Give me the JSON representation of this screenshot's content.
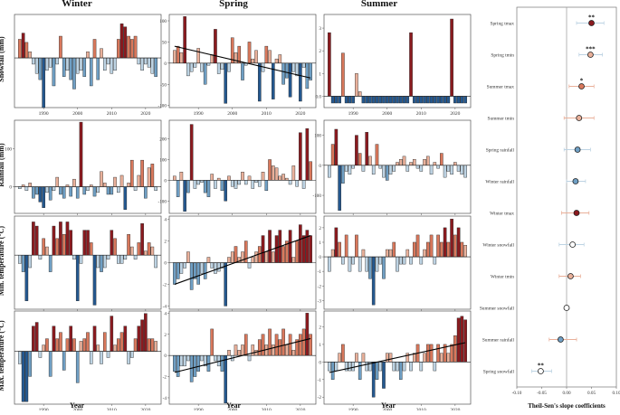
{
  "columns": [
    "Winter",
    "Spring",
    "Summer"
  ],
  "row_labels": [
    "Snowfall (mm)",
    "Rainfall (mm)",
    "Min. temperature (°C)",
    "Max. temperature (°C)"
  ],
  "x_axis_label": "Year",
  "x_ticks": [
    "1990",
    "2000",
    "2010",
    "2020"
  ],
  "colors": {
    "dark_red": "#8b1a1f",
    "light_red": "#e9b09a",
    "mid_red": "#d9785c",
    "light_blue": "#bdd3e3",
    "mid_blue": "#6f9fc4",
    "dark_blue": "#24588f"
  },
  "chart_data": [
    {
      "type": "bar",
      "id": "winter-snowfall",
      "season": "Winter",
      "variable": "Snowfall (mm)",
      "start_year": 1983,
      "ylim": [
        -80,
        70
      ],
      "yticks": [],
      "trend": "none",
      "values": [
        30,
        40,
        25,
        10,
        -10,
        -25,
        -35,
        -80,
        -20,
        -15,
        -45,
        -10,
        35,
        -30,
        -20,
        -35,
        -50,
        -25,
        -20,
        -30,
        10,
        -45,
        30,
        -35,
        15,
        -20,
        -10,
        -25,
        -20,
        30,
        55,
        50,
        35,
        30,
        35,
        -10,
        -20,
        -10,
        -15,
        -25,
        -30
      ]
    },
    {
      "type": "bar",
      "id": "spring-snowfall",
      "season": "Spring",
      "variable": "Snowfall (mm)",
      "start_year": 1983,
      "ylim": [
        -105,
        115
      ],
      "yticks": [
        "100",
        "50",
        "0",
        "-50",
        "-100"
      ],
      "trend": {
        "from": [
          1983,
          40
        ],
        "to": [
          2023,
          -35
        ]
      },
      "values": [
        30,
        40,
        25,
        110,
        -30,
        -20,
        -10,
        35,
        -20,
        -50,
        -5,
        20,
        80,
        -25,
        -15,
        -95,
        -20,
        60,
        25,
        40,
        -40,
        -5,
        50,
        10,
        30,
        -90,
        -20,
        40,
        30,
        -85,
        10,
        20,
        -50,
        -35,
        -80,
        -20,
        -30,
        -90,
        -10,
        -60,
        -40
      ]
    },
    {
      "type": "bar",
      "id": "summer-snowfall",
      "season": "Summer",
      "variable": "Snowfall (mm)",
      "start_year": 1983,
      "ylim": [
        -0.5,
        3.6
      ],
      "yticks": [
        "3",
        "2",
        "1",
        "0.0"
      ],
      "trend": "none",
      "values": [
        2.8,
        -0.3,
        -0.3,
        -0.3,
        1.9,
        -0.3,
        -0.3,
        -0.3,
        1.0,
        0.2,
        -0.3,
        -0.3,
        -0.3,
        -0.3,
        -0.3,
        -0.3,
        -0.3,
        -0.3,
        -0.3,
        -0.3,
        -0.3,
        -0.3,
        -0.3,
        -0.3,
        2.8,
        -0.3,
        -0.3,
        -0.3,
        -0.3,
        -0.3,
        -0.3,
        -0.3,
        -0.3,
        -0.3,
        -0.3,
        -0.3,
        3.4,
        -0.3,
        -0.3,
        -0.3,
        -0.3
      ]
    },
    {
      "type": "bar",
      "id": "winter-rainfall",
      "season": "Winter",
      "variable": "Rainfall (mm)",
      "start_year": 1983,
      "ylim": [
        -70,
        175
      ],
      "yticks": [
        "100",
        "0"
      ],
      "trend": "none",
      "values": [
        -5,
        5,
        -10,
        10,
        -30,
        -20,
        -40,
        -55,
        -15,
        -35,
        -10,
        25,
        -20,
        -30,
        5,
        -25,
        20,
        -30,
        170,
        -20,
        -10,
        5,
        -25,
        -15,
        40,
        10,
        -20,
        -20,
        25,
        -15,
        30,
        -60,
        10,
        70,
        -10,
        30,
        70,
        -30,
        50,
        60,
        -10
      ]
    },
    {
      "type": "bar",
      "id": "spring-rainfall",
      "season": "Spring",
      "variable": "Rainfall (mm)",
      "start_year": 1983,
      "ylim": [
        -160,
        290
      ],
      "yticks": [
        "200",
        "100",
        "0",
        "-100"
      ],
      "trend": "none",
      "values": [
        20,
        -80,
        40,
        -150,
        -60,
        270,
        -40,
        -20,
        -10,
        -60,
        -80,
        30,
        -40,
        10,
        -50,
        -100,
        20,
        -30,
        -40,
        -20,
        40,
        -20,
        20,
        -40,
        -10,
        -30,
        40,
        -50,
        100,
        70,
        60,
        20,
        30,
        10,
        -20,
        70,
        -30,
        230,
        -40,
        250,
        90
      ]
    },
    {
      "type": "bar",
      "id": "summer-rainfall",
      "season": "Summer",
      "variable": "Rainfall (mm)",
      "start_year": 1983,
      "ylim": [
        -160,
        150
      ],
      "yticks": [
        "100",
        "0",
        "-100"
      ],
      "trend": "none",
      "values": [
        -40,
        70,
        120,
        -150,
        -60,
        -20,
        -30,
        -10,
        100,
        40,
        -20,
        110,
        30,
        -30,
        70,
        -10,
        -40,
        -50,
        -30,
        -20,
        10,
        20,
        30,
        -20,
        10,
        20,
        -10,
        -20,
        20,
        30,
        -30,
        10,
        -10,
        40,
        -40,
        -20,
        -30,
        10,
        -20,
        -30,
        -40
      ]
    },
    {
      "type": "bar",
      "id": "winter-tmin",
      "season": "Winter",
      "variable": "Min. temperature (°C)",
      "start_year": 1983,
      "ylim": [
        -6.5,
        4.7
      ],
      "yticks": [],
      "trend": "none",
      "values": [
        -1,
        -2,
        -5.5,
        -1.5,
        4,
        3.5,
        -0.5,
        2,
        1,
        -2,
        3.5,
        2,
        4,
        2.5,
        4,
        3,
        -0.5,
        -5.5,
        -1,
        3,
        3,
        1.5,
        -6,
        -1.5,
        -2,
        -1.5,
        -0.5,
        3,
        2,
        -1,
        -1,
        -0.5,
        2.5,
        1,
        -0.5,
        1.5,
        3.8,
        0.5,
        1.5,
        1,
        -1.5
      ]
    },
    {
      "type": "bar",
      "id": "spring-tmin",
      "season": "Spring",
      "variable": "Min. temperature (°C)",
      "start_year": 1983,
      "ylim": [
        -4.3,
        4.3
      ],
      "yticks": [
        "4",
        "2",
        "0",
        "-2",
        "-4"
      ],
      "trend": {
        "from": [
          1983,
          -2
        ],
        "to": [
          2023,
          2.5
        ]
      },
      "values": [
        -2,
        -1.5,
        -1,
        -0.5,
        1,
        -2.5,
        -1.5,
        -2,
        -1,
        -1.5,
        0.5,
        -0.5,
        -1,
        -0.8,
        -0.5,
        -4,
        0.5,
        1,
        1.5,
        0.5,
        1,
        2,
        -0.5,
        0.5,
        1,
        1.5,
        2.5,
        1,
        3,
        1,
        2.5,
        3,
        1.5,
        2,
        3,
        0.5,
        2,
        3.5,
        2.5,
        3,
        2.5
      ]
    },
    {
      "type": "bar",
      "id": "summer-tmin",
      "season": "Summer",
      "variable": "Min. temperature (°C)",
      "start_year": 1983,
      "ylim": [
        -3.6,
        2.8
      ],
      "yticks": [
        "2",
        "1",
        "0",
        "-1",
        "-2",
        "-3"
      ],
      "trend": "none",
      "values": [
        -1,
        0.5,
        2,
        1,
        -0.5,
        1.5,
        -1,
        -0.5,
        1.5,
        -1,
        0.5,
        -1,
        -1.5,
        -3.3,
        -1,
        -0.5,
        -1.5,
        0.5,
        0.5,
        1,
        -1,
        -0.5,
        -0.5,
        0.5,
        -0.5,
        1,
        1.5,
        -0.5,
        0.5,
        1,
        1.5,
        -0.5,
        1.5,
        1,
        2,
        1,
        2.6,
        1.5,
        2,
        1,
        0.8
      ]
    },
    {
      "type": "bar",
      "id": "winter-tmax",
      "season": "Winter",
      "variable": "Max. temperature (°C)",
      "start_year": 1983,
      "ylim": [
        -4.2,
        3.2
      ],
      "yticks": [],
      "trend": "none",
      "values": [
        -1,
        -4,
        -4,
        -2,
        2,
        2.3,
        -0.5,
        0.5,
        1,
        -2,
        2,
        1,
        1.5,
        -1.5,
        1,
        2,
        1,
        -2.5,
        0.8,
        1,
        1.5,
        -1,
        2,
        0.5,
        -1,
        1.5,
        -0.5,
        2.8,
        0.5,
        1,
        1.5,
        2,
        -1,
        -0.5,
        1,
        2,
        2.5,
        3,
        1,
        1,
        0.8
      ]
    },
    {
      "type": "bar",
      "id": "spring-tmax",
      "season": "Spring",
      "variable": "Max. temperature (°C)",
      "start_year": 1983,
      "ylim": [
        -4.6,
        4.2
      ],
      "yticks": [
        "4",
        "2",
        "0",
        "-2",
        "-4"
      ],
      "trend": {
        "from": [
          1983,
          -1.6
        ],
        "to": [
          2023,
          1.6
        ]
      },
      "values": [
        -1.5,
        -2,
        -1,
        -1,
        -0.5,
        -2.5,
        -2,
        -1.5,
        -0.5,
        -1,
        -1.5,
        2.5,
        -0.5,
        -1,
        -1.5,
        -4.5,
        0.5,
        -0.5,
        1,
        0.5,
        1,
        2,
        -0.5,
        1,
        0.5,
        1.5,
        2,
        1,
        2.5,
        1,
        2,
        1.5,
        2.5,
        1,
        2,
        0.5,
        1.5,
        2,
        2.5,
        4,
        2
      ]
    },
    {
      "type": "bar",
      "id": "summer-tmax",
      "season": "Summer",
      "variable": "Max. temperature (°C)",
      "start_year": 1983,
      "ylim": [
        -2.4,
        2.9
      ],
      "yticks": [
        "2",
        "1",
        "0",
        "-1",
        "-2"
      ],
      "trend": {
        "from": [
          1983,
          -0.6
        ],
        "to": [
          2023,
          1.1
        ]
      },
      "values": [
        -0.5,
        -1,
        -0.5,
        0.5,
        1,
        -0.5,
        -0.5,
        -0.5,
        0.5,
        -1,
        0.5,
        -0.5,
        -0.5,
        -2,
        -1,
        -0.5,
        -1.5,
        0.5,
        0.5,
        -0.5,
        -0.5,
        -1,
        -0.5,
        0.5,
        -0.5,
        0.5,
        1,
        -0.5,
        0.5,
        1,
        1,
        -0.5,
        1,
        0.5,
        1,
        0.5,
        1,
        1.5,
        2.5,
        2.6,
        2.4
      ]
    },
    {
      "type": "dot",
      "id": "theil-sen",
      "xlabel": "Theil-Sen's slope coefficients",
      "xlim": [
        -0.1,
        0.1
      ],
      "xticks": [
        "-0.10",
        "-0.05",
        "0.00",
        "0.05",
        "0.10"
      ],
      "items": [
        {
          "label": "Spring tmax",
          "value": 0.05,
          "lo": 0.02,
          "hi": 0.075,
          "sig": "**",
          "fill": "dark_red",
          "err": "light_blue"
        },
        {
          "label": "Spring tmin",
          "value": 0.048,
          "lo": 0.025,
          "hi": 0.072,
          "sig": "***",
          "fill": "light_red",
          "err": "light_blue"
        },
        {
          "label": "Summer tmax",
          "value": 0.03,
          "lo": 0.005,
          "hi": 0.055,
          "sig": "*",
          "fill": "mid_red",
          "err": "light_red"
        },
        {
          "label": "Summer tmin",
          "value": 0.025,
          "lo": -0.005,
          "hi": 0.055,
          "sig": "",
          "fill": "light_red",
          "err": "light_red"
        },
        {
          "label": "Spring rainfall",
          "value": 0.022,
          "lo": -0.005,
          "hi": 0.048,
          "sig": "",
          "fill": "mid_blue",
          "err": "light_blue"
        },
        {
          "label": "Winter rainfall",
          "value": 0.018,
          "lo": 0.0,
          "hi": 0.038,
          "sig": "",
          "fill": "mid_blue",
          "err": "light_blue"
        },
        {
          "label": "Winter tmax",
          "value": 0.02,
          "lo": -0.01,
          "hi": 0.045,
          "sig": "",
          "fill": "dark_red",
          "err": "light_red"
        },
        {
          "label": "Winter snowfall",
          "value": 0.012,
          "lo": -0.015,
          "hi": 0.035,
          "sig": "",
          "fill": "white",
          "err": "light_blue"
        },
        {
          "label": "Winter tmin",
          "value": 0.008,
          "lo": -0.015,
          "hi": 0.028,
          "sig": "",
          "fill": "light_red",
          "err": "light_red"
        },
        {
          "label": "Summer snowfall",
          "value": 0.0,
          "lo": -0.002,
          "hi": 0.002,
          "sig": "",
          "fill": "white",
          "err": "light_blue"
        },
        {
          "label": "Summer rainfall",
          "value": -0.012,
          "lo": -0.035,
          "hi": 0.02,
          "sig": "",
          "fill": "mid_blue",
          "err": "light_red"
        },
        {
          "label": "Spring snowfall",
          "value": -0.052,
          "lo": -0.07,
          "hi": -0.03,
          "sig": "**",
          "fill": "white",
          "err": "light_blue"
        }
      ]
    }
  ]
}
